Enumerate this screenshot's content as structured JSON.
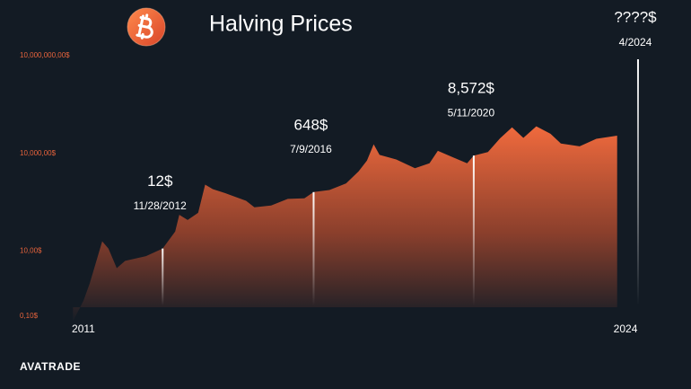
{
  "brand": "AVATRADE",
  "chart_data": {
    "type": "area",
    "title": "Halving Prices",
    "color": "#f06a3d",
    "yscale": "log",
    "xlim": [
      2010,
      2025
    ],
    "ylim": [
      0.1,
      10000000
    ],
    "xticks": [
      2011,
      2024
    ],
    "yticks": [
      {
        "value": 0.1,
        "label": "0,10$"
      },
      {
        "value": 10,
        "label": "10,00$"
      },
      {
        "value": 10000,
        "label": "10,000,00$"
      },
      {
        "value": 10000000,
        "label": "10,000,000,00$"
      }
    ],
    "x": [
      2010.75,
      2011.0,
      2011.15,
      2011.45,
      2011.6,
      2011.8,
      2012.0,
      2012.5,
      2012.9,
      2013.2,
      2013.3,
      2013.5,
      2013.75,
      2013.92,
      2014.1,
      2014.4,
      2014.9,
      2015.1,
      2015.5,
      2015.9,
      2016.3,
      2016.52,
      2016.9,
      2017.3,
      2017.6,
      2017.8,
      2017.96,
      2018.1,
      2018.5,
      2018.95,
      2019.3,
      2019.5,
      2019.9,
      2020.2,
      2020.36,
      2020.7,
      2020.99,
      2021.28,
      2021.55,
      2021.86,
      2022.2,
      2022.45,
      2022.9,
      2023.3,
      2023.8
    ],
    "values": [
      0.07,
      0.3,
      1,
      20,
      12,
      3,
      5,
      7,
      12,
      40,
      130,
      90,
      150,
      1100,
      800,
      600,
      350,
      220,
      250,
      400,
      420,
      648,
      750,
      1200,
      2800,
      6000,
      19000,
      9000,
      6500,
      3500,
      5000,
      12000,
      7200,
      5000,
      8572,
      11000,
      29000,
      63000,
      30000,
      68000,
      40000,
      20000,
      16500,
      28000,
      35000
    ],
    "halvings": {
      "x": [
        2012.9,
        2016.52,
        2020.36,
        2024.3
      ],
      "values": [
        12,
        648,
        8572,
        null
      ],
      "value_labels": [
        "12$",
        "648$",
        "8,572$",
        "????$"
      ],
      "labels": [
        "11/28/2012",
        "7/9/2016",
        "5/11/2020",
        "4/2024"
      ]
    }
  }
}
